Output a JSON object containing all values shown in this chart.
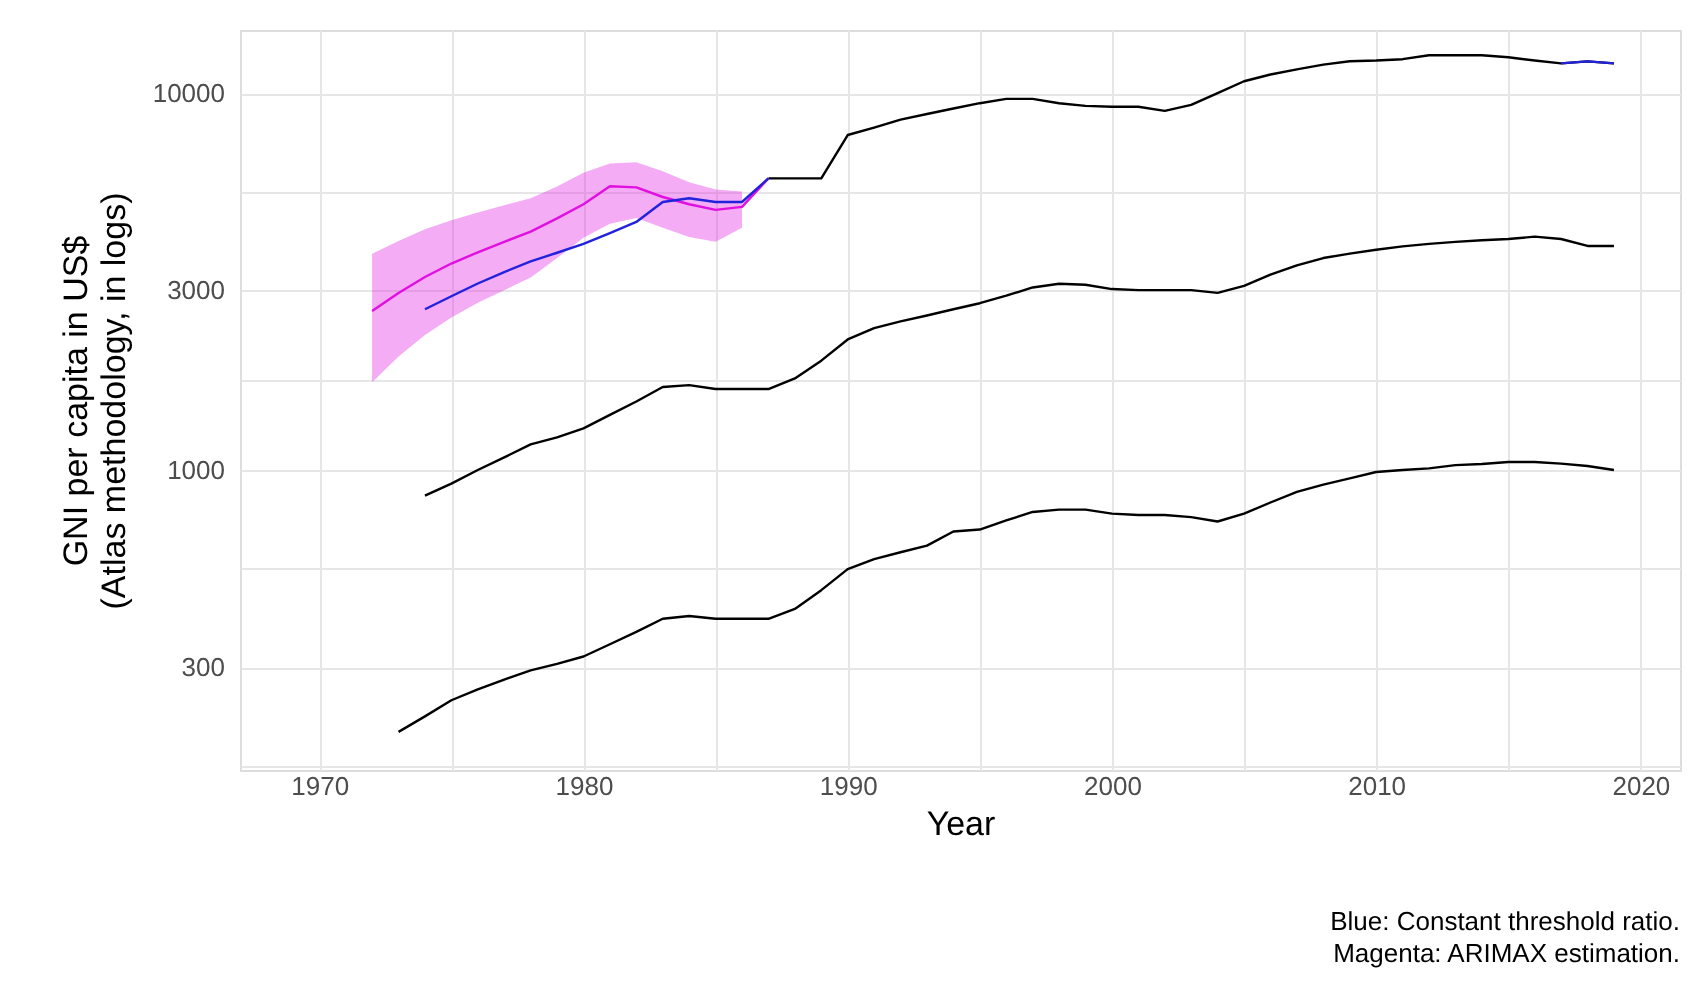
{
  "chart_data": {
    "type": "line",
    "xlabel": "Year",
    "ylabel": "GNI per capita in US$\n(Atlas methodology, in logs)",
    "log": "y",
    "grid": true,
    "marker": "none",
    "line_style": "solid",
    "xlim": [
      1967,
      2021.5
    ],
    "ylim": [
      160,
      14700
    ],
    "xticks": [
      1970,
      {
        "value": 1975,
        "label": null
      },
      1980,
      {
        "value": 1985,
        "label": null
      },
      1990,
      {
        "value": 1995,
        "label": null
      },
      2000,
      {
        "value": 2005,
        "label": null
      },
      2010,
      {
        "value": 2015,
        "label": null
      },
      2020
    ],
    "yticks": [
      {
        "value": 164,
        "label": null
      },
      300,
      {
        "value": 548,
        "label": null
      },
      1000,
      {
        "value": 1732,
        "label": null
      },
      3000,
      {
        "value": 5477,
        "label": null
      },
      10000
    ],
    "annotations": [
      "Blue: Constant threshold ratio.",
      "Magenta: ARIMAX estimation."
    ],
    "series": [
      {
        "color": "#000000",
        "x": [
          1987,
          1988,
          1989,
          1990,
          1991,
          1992,
          1993,
          1994,
          1995,
          1996,
          1997,
          1998,
          1999,
          2000,
          2001,
          2002,
          2003,
          2004,
          2005,
          2006,
          2007,
          2008,
          2009,
          2010,
          2011,
          2012,
          2013,
          2014,
          2015,
          2016,
          2017,
          2018,
          2019
        ],
        "values": [
          5940,
          5940,
          5940,
          7740,
          8100,
          8500,
          8800,
          9100,
          9400,
          9650,
          9650,
          9400,
          9250,
          9200,
          9200,
          8970,
          9300,
          10000,
          10750,
          11200,
          11560,
          11900,
          12150,
          12200,
          12300,
          12600,
          12600,
          12600,
          12450,
          12200,
          11990,
          12140,
          11990
        ]
      },
      {
        "color": "#000000",
        "x": [
          1974,
          1975,
          1976,
          1977,
          1978,
          1979,
          1980,
          1981,
          1982,
          1983,
          1984,
          1985,
          1986,
          1987,
          1988,
          1989,
          1990,
          1991,
          1992,
          1993,
          1994,
          1995,
          1996,
          1997,
          1998,
          1999,
          2000,
          2001,
          2002,
          2003,
          2004,
          2005,
          2006,
          2007,
          2008,
          2009,
          2010,
          2011,
          2012,
          2013,
          2014,
          2015,
          2016,
          2017,
          2018,
          2019
        ],
        "values": [
          855,
          920,
          1000,
          1080,
          1170,
          1220,
          1290,
          1400,
          1520,
          1660,
          1680,
          1640,
          1640,
          1640,
          1750,
          1950,
          2220,
          2380,
          2480,
          2570,
          2670,
          2770,
          2900,
          3050,
          3120,
          3100,
          3020,
          3000,
          3000,
          3000,
          2950,
          3080,
          3300,
          3490,
          3650,
          3750,
          3840,
          3920,
          3980,
          4030,
          4070,
          4100,
          4160,
          4100,
          3930,
          3930
        ]
      },
      {
        "color": "#000000",
        "x": [
          1973,
          1974,
          1975,
          1976,
          1977,
          1978,
          1979,
          1980,
          1981,
          1982,
          1983,
          1984,
          1985,
          1986,
          1987,
          1988,
          1989,
          1990,
          1991,
          1992,
          1993,
          1994,
          1995,
          1996,
          1997,
          1998,
          1999,
          2000,
          2001,
          2002,
          2003,
          2004,
          2005,
          2006,
          2007,
          2008,
          2009,
          2010,
          2011,
          2012,
          2013,
          2014,
          2015,
          2016,
          2017,
          2018,
          2019
        ],
        "values": [
          202,
          222,
          245,
          262,
          278,
          294,
          306,
          320,
          345,
          372,
          403,
          410,
          403,
          403,
          403,
          428,
          480,
          546,
          580,
          605,
          630,
          687,
          695,
          735,
          774,
          785,
          785,
          766,
          760,
          760,
          750,
          730,
          766,
          820,
          875,
          915,
          950,
          988,
          1000,
          1010,
          1030,
          1037,
          1050,
          1050,
          1040,
          1025,
          1000
        ]
      },
      {
        "color": "#e010e0",
        "x": [
          1972,
          1973,
          1974,
          1975,
          1976,
          1977,
          1978,
          1979,
          1980,
          1981,
          1982,
          1983,
          1984,
          1985,
          1986,
          1987
        ],
        "values": [
          2640,
          2950,
          3250,
          3530,
          3780,
          4030,
          4290,
          4650,
          5070,
          5660,
          5620,
          5300,
          5070,
          4900,
          4990,
          5940
        ],
        "lower": [
          1710,
          2000,
          2280,
          2540,
          2780,
          3000,
          3240,
          3650,
          4130,
          4500,
          4660,
          4390,
          4150,
          4030,
          4390,
          null
        ],
        "upper": [
          3750,
          4050,
          4350,
          4600,
          4820,
          5040,
          5260,
          5650,
          6150,
          6500,
          6550,
          6200,
          5800,
          5550,
          5480,
          null
        ]
      },
      {
        "color": "#2222dd",
        "x": [
          1974,
          1975,
          1976,
          1977,
          1978,
          1979,
          1980,
          1981,
          1982,
          1983,
          1984,
          1985,
          1986,
          1987,
          2000,
          2017,
          2018,
          2019
        ],
        "values": [
          2670,
          2890,
          3125,
          3350,
          3575,
          3770,
          3980,
          4250,
          4550,
          5140,
          5260,
          5140,
          5140,
          5940,
          null,
          11990,
          12140,
          11990
        ]
      }
    ]
  }
}
